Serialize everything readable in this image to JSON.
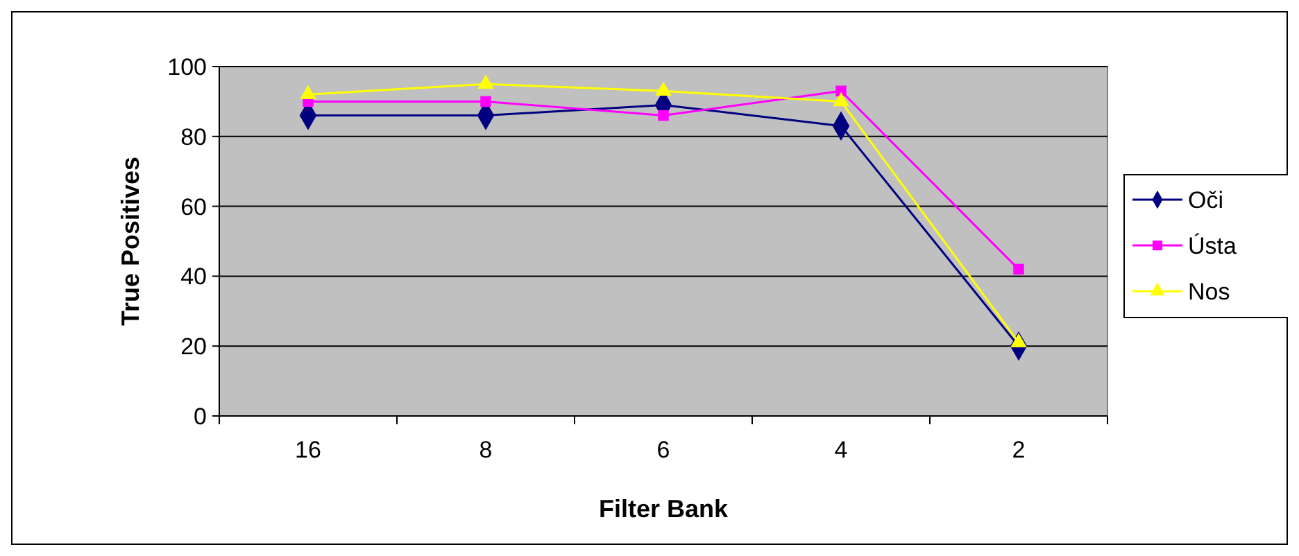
{
  "chart_data": {
    "type": "line",
    "xlabel": "Filter Bank",
    "ylabel": "True Positives",
    "categories": [
      "16",
      "8",
      "6",
      "4",
      "2"
    ],
    "series": [
      {
        "name": "Oči",
        "color": "#000080",
        "marker": "diamond",
        "values": [
          86,
          86,
          89,
          83,
          20
        ]
      },
      {
        "name": "Ústa",
        "color": "#ff00ff",
        "marker": "square",
        "values": [
          90,
          90,
          86,
          93,
          42
        ]
      },
      {
        "name": "Nos",
        "color": "#ffff00",
        "marker": "triangle",
        "values": [
          92,
          95,
          93,
          90,
          21
        ]
      }
    ],
    "ylim": [
      0,
      100
    ],
    "yticks": [
      0,
      20,
      40,
      60,
      80,
      100
    ],
    "grid": "y",
    "legend": "right"
  }
}
